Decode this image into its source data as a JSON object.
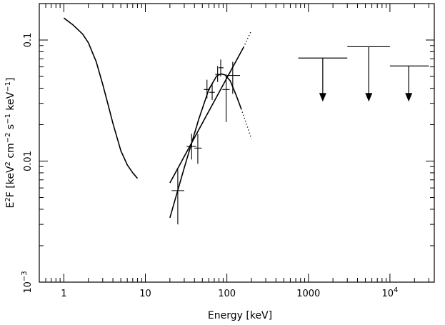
{
  "chart_data": {
    "type": "scatter",
    "xscale": "log",
    "yscale": "log",
    "xlim": [
      0.5,
      35000
    ],
    "ylim": [
      0.001,
      0.2
    ],
    "grid": false,
    "legend": "none",
    "color": "#000000",
    "xlabel": "Energy [keV]",
    "ylabel_parts": [
      "E",
      "2",
      "F  [keV",
      "2",
      " cm",
      "−2",
      " s",
      "−1",
      " keV",
      "−1",
      "]"
    ],
    "x_ticks": [
      {
        "value": 1,
        "label": "1",
        "base": "",
        "exp": ""
      },
      {
        "value": 10,
        "label": "10",
        "base": "",
        "exp": ""
      },
      {
        "value": 100,
        "label": "100",
        "base": "",
        "exp": ""
      },
      {
        "value": 1000,
        "label": "1000",
        "base": "",
        "exp": ""
      },
      {
        "value": 10000,
        "label": "",
        "base": "10",
        "exp": "4"
      }
    ],
    "y_ticks": [
      {
        "value": 0.001,
        "label": "",
        "base": "10",
        "exp": "−3"
      },
      {
        "value": 0.01,
        "label": "0.01",
        "base": "",
        "exp": ""
      },
      {
        "value": 0.1,
        "label": "0.1",
        "base": "",
        "exp": ""
      }
    ],
    "series": [
      {
        "kind": "line",
        "x": [
          1.0,
          1.3,
          1.7,
          2.0,
          2.5,
          3.0,
          3.5,
          4.0,
          5.0,
          6.0,
          7.0,
          8.0
        ],
        "y": [
          0.152,
          0.133,
          0.112,
          0.095,
          0.066,
          0.043,
          0.029,
          0.0205,
          0.0122,
          0.0093,
          0.008,
          0.0072
        ]
      },
      {
        "kind": "line",
        "x": [
          20,
          160
        ],
        "y": [
          0.0066,
          0.087
        ]
      },
      {
        "kind": "line",
        "x": [
          20,
          30,
          45,
          60,
          75,
          85,
          95,
          110,
          130,
          150
        ],
        "y": [
          0.0034,
          0.0088,
          0.022,
          0.039,
          0.0505,
          0.0525,
          0.0515,
          0.046,
          0.035,
          0.027
        ]
      },
      {
        "kind": "dotted",
        "x": [
          160,
          200
        ],
        "y": [
          0.087,
          0.12
        ]
      },
      {
        "kind": "dotted",
        "x": [
          150,
          175,
          200
        ],
        "y": [
          0.027,
          0.02,
          0.0153
        ]
      }
    ],
    "points": [
      {
        "x": 25,
        "xlo": 21,
        "xhi": 30,
        "y": 0.0057,
        "ylo": 0.003,
        "yhi": 0.0085
      },
      {
        "x": 37,
        "xlo": 32,
        "xhi": 42,
        "y": 0.0132,
        "ylo": 0.0103,
        "yhi": 0.0168
      },
      {
        "x": 44,
        "xlo": 40,
        "xhi": 49,
        "y": 0.0128,
        "ylo": 0.0095,
        "yhi": 0.0168
      },
      {
        "x": 57,
        "xlo": 52,
        "xhi": 62,
        "y": 0.039,
        "ylo": 0.033,
        "yhi": 0.047
      },
      {
        "x": 66,
        "xlo": 61,
        "xhi": 71,
        "y": 0.037,
        "ylo": 0.032,
        "yhi": 0.044
      },
      {
        "x": 77,
        "xlo": 72,
        "xhi": 84,
        "y": 0.052,
        "ylo": 0.045,
        "yhi": 0.061
      },
      {
        "x": 84,
        "xlo": 79,
        "xhi": 91,
        "y": 0.059,
        "ylo": 0.05,
        "yhi": 0.069
      },
      {
        "x": 98,
        "xlo": 88,
        "xhi": 108,
        "y": 0.039,
        "ylo": 0.021,
        "yhi": 0.052
      },
      {
        "x": 118,
        "xlo": 100,
        "xhi": 145,
        "y": 0.051,
        "ylo": 0.036,
        "yhi": 0.066
      }
    ],
    "upper_limits": [
      {
        "xlo": 750,
        "xhi": 3000,
        "x": 1500,
        "y": 0.071,
        "arrow_to": 0.031
      },
      {
        "xlo": 3000,
        "xhi": 10000,
        "x": 5500,
        "y": 0.088,
        "arrow_to": 0.031
      },
      {
        "xlo": 10000,
        "xhi": 30000,
        "x": 17000,
        "y": 0.061,
        "arrow_to": 0.031
      }
    ]
  }
}
